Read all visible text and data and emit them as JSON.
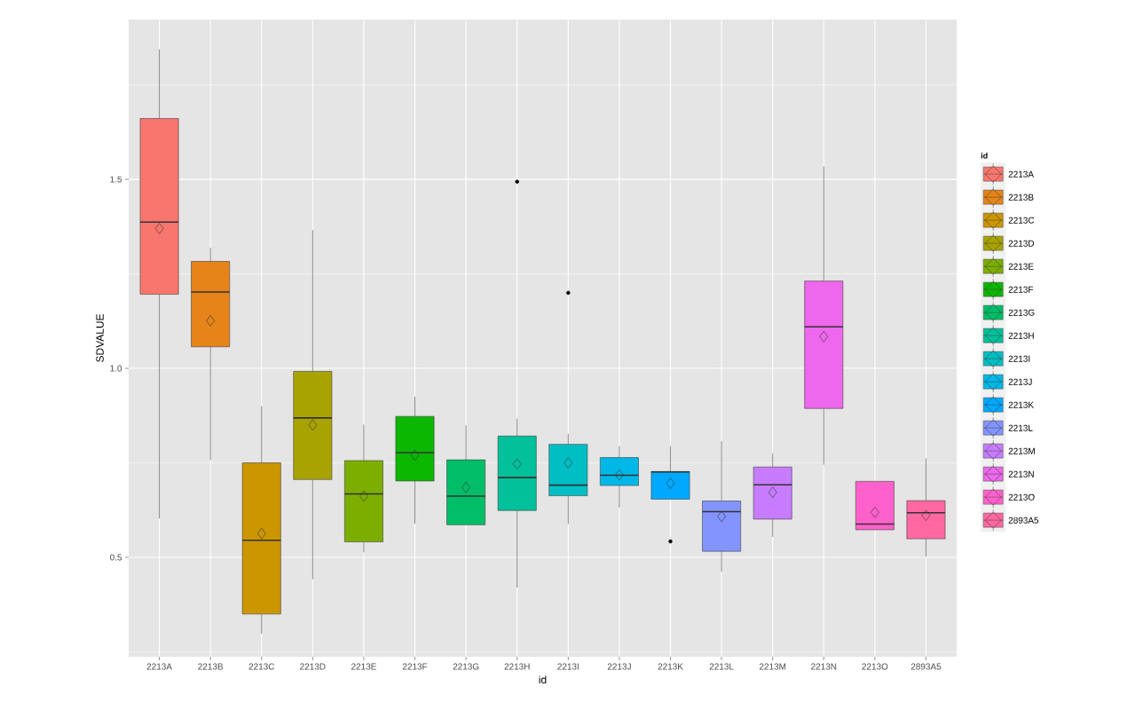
{
  "chart_data": {
    "type": "box",
    "xlabel": "id",
    "ylabel": "SDVALUE",
    "legend_title": "id",
    "categories": [
      "2213A",
      "2213B",
      "2213C",
      "2213D",
      "2213E",
      "2213F",
      "2213G",
      "2213H",
      "2213I",
      "2213J",
      "2213K",
      "2213L",
      "2213M",
      "2213N",
      "2213O",
      "2893A5"
    ],
    "colors": [
      "#F8766D",
      "#E6841A",
      "#CC9600",
      "#A9A300",
      "#7CAE00",
      "#0CB702",
      "#00BE67",
      "#00C19A",
      "#00BFC4",
      "#00B8E7",
      "#00A9FF",
      "#8494FF",
      "#C77CFF",
      "#ED68ED",
      "#FF61CC",
      "#FF68A1"
    ],
    "boxes": [
      {
        "low": 0.603,
        "q1": 1.196,
        "median": 1.387,
        "q3": 1.661,
        "high": 1.844,
        "mean": 1.37
      },
      {
        "low": 0.758,
        "q1": 1.057,
        "median": 1.202,
        "q3": 1.283,
        "high": 1.319,
        "mean": 1.126
      },
      {
        "low": 0.298,
        "q1": 0.35,
        "median": 0.545,
        "q3": 0.75,
        "high": 0.9,
        "mean": 0.563
      },
      {
        "low": 0.442,
        "q1": 0.706,
        "median": 0.869,
        "q3": 0.992,
        "high": 1.366,
        "mean": 0.85
      },
      {
        "low": 0.513,
        "q1": 0.541,
        "median": 0.668,
        "q3": 0.756,
        "high": 0.851,
        "mean": 0.662
      },
      {
        "low": 0.589,
        "q1": 0.702,
        "median": 0.777,
        "q3": 0.873,
        "high": 0.925,
        "mean": 0.77
      },
      {
        "low": 0.586,
        "q1": 0.586,
        "median": 0.662,
        "q3": 0.758,
        "high": 0.849,
        "mean": 0.685
      },
      {
        "low": 0.42,
        "q1": 0.624,
        "median": 0.711,
        "q3": 0.821,
        "high": 0.867,
        "mean": 0.747,
        "outliers": [
          1.494
        ]
      },
      {
        "low": 0.588,
        "q1": 0.663,
        "median": 0.691,
        "q3": 0.799,
        "high": 0.827,
        "mean": 0.75,
        "outliers": [
          1.2
        ]
      },
      {
        "low": 0.632,
        "q1": 0.69,
        "median": 0.717,
        "q3": 0.764,
        "high": 0.794,
        "mean": 0.718
      },
      {
        "low": 0.654,
        "q1": 0.654,
        "median": 0.726,
        "q3": 0.727,
        "high": 0.794,
        "mean": 0.696,
        "outliers": [
          0.542
        ]
      },
      {
        "low": 0.462,
        "q1": 0.516,
        "median": 0.621,
        "q3": 0.649,
        "high": 0.807,
        "mean": 0.608
      },
      {
        "low": 0.554,
        "q1": 0.601,
        "median": 0.692,
        "q3": 0.739,
        "high": 0.775,
        "mean": 0.672
      },
      {
        "low": 0.745,
        "q1": 0.894,
        "median": 1.11,
        "q3": 1.231,
        "high": 1.534,
        "mean": 1.084
      },
      {
        "low": 0.573,
        "q1": 0.573,
        "median": 0.588,
        "q3": 0.701,
        "high": 0.701,
        "mean": 0.619
      },
      {
        "low": 0.502,
        "q1": 0.549,
        "median": 0.618,
        "q3": 0.65,
        "high": 0.762,
        "mean": 0.611
      }
    ],
    "ylim": [
      0.237,
      1.923
    ],
    "yticks": [
      {
        "value": 0.5,
        "label": "0.5"
      },
      {
        "value": 1,
        "label": "1.0"
      },
      {
        "value": 1.5,
        "label": "1.5"
      }
    ],
    "grid": true
  }
}
